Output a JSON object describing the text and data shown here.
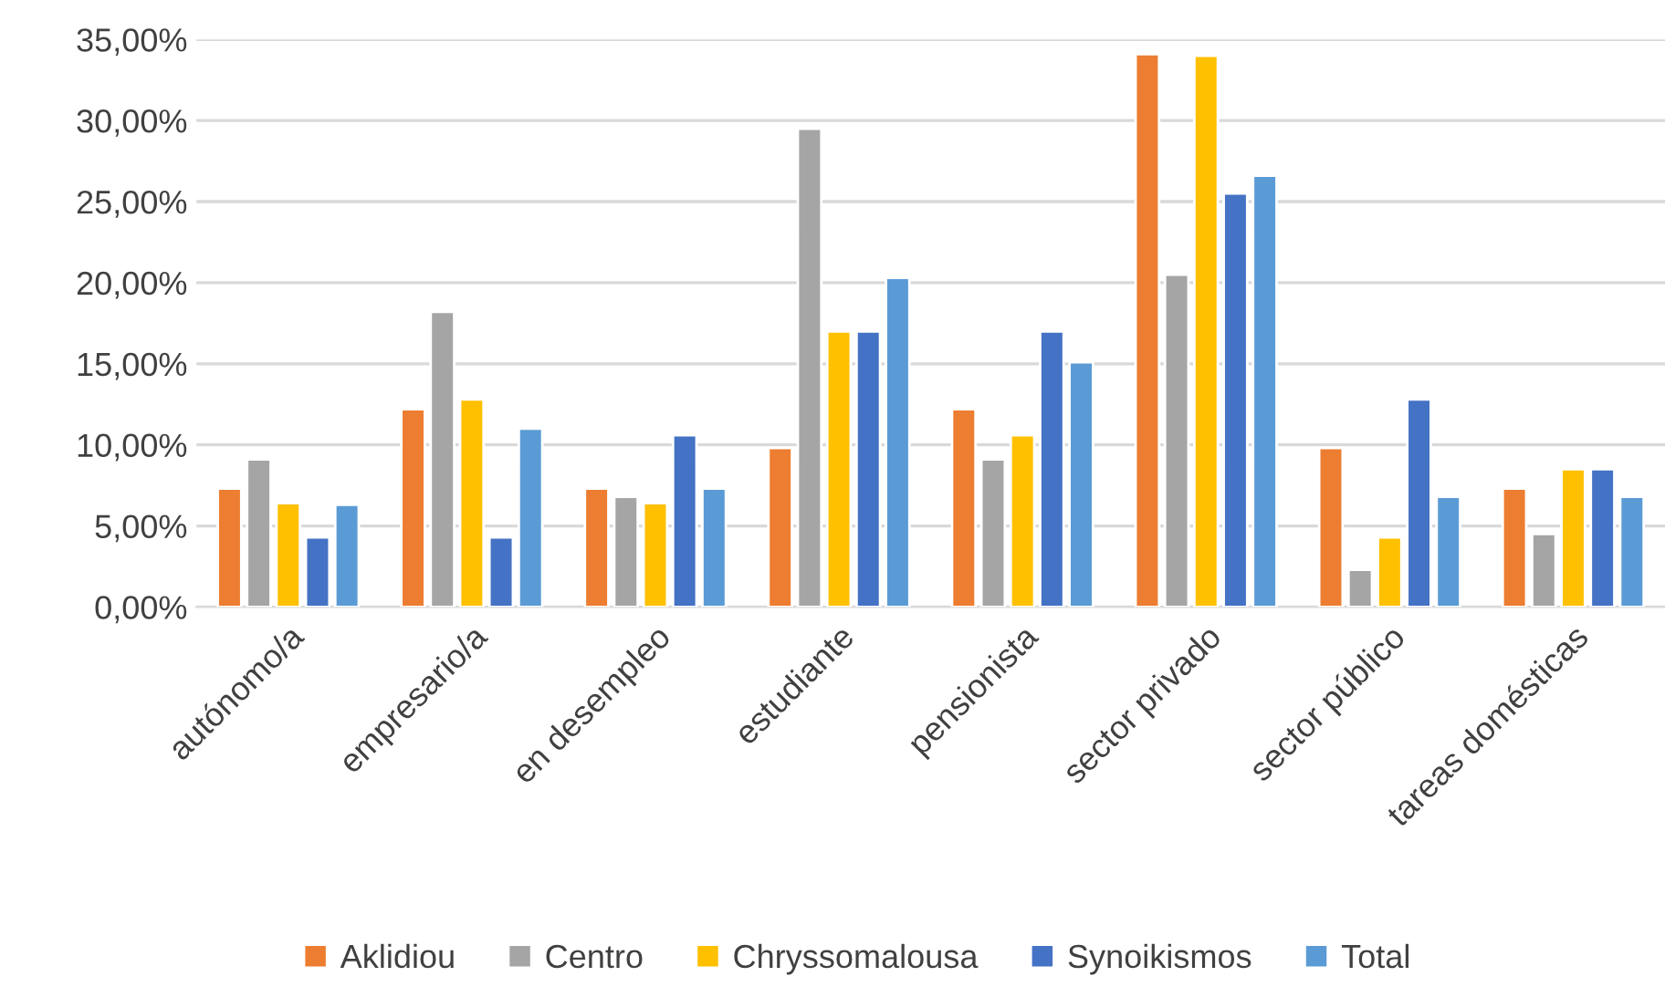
{
  "chart_data": {
    "type": "bar",
    "categories": [
      "autónomo/a",
      "empresario/a",
      "en desempleo",
      "estudiante",
      "pensionista",
      "sector privado",
      "sector público",
      "tareas domésticas"
    ],
    "series": [
      {
        "name": "Aklidiou",
        "color": "#ed7d31",
        "values": [
          7.3,
          12.2,
          7.3,
          9.8,
          12.2,
          34.1,
          9.8,
          7.3
        ]
      },
      {
        "name": "Centro",
        "color": "#a5a5a5",
        "values": [
          9.1,
          18.2,
          6.8,
          29.5,
          9.1,
          20.5,
          2.3,
          4.5
        ]
      },
      {
        "name": "Chryssomalousa",
        "color": "#ffc000",
        "values": [
          6.4,
          12.8,
          6.4,
          17.0,
          10.6,
          34.0,
          4.3,
          8.5
        ]
      },
      {
        "name": "Synoikismos",
        "color": "#4472c4",
        "values": [
          4.3,
          4.3,
          10.6,
          17.0,
          17.0,
          25.5,
          12.8,
          8.5
        ]
      },
      {
        "name": "Total",
        "color": "#5b9bd5",
        "values": [
          6.3,
          11.0,
          7.3,
          20.3,
          15.1,
          26.6,
          6.8,
          6.8
        ]
      }
    ],
    "ylim": [
      0,
      35
    ],
    "yticks": [
      {
        "value": 0,
        "label": "0,00%"
      },
      {
        "value": 5,
        "label": "5,00%"
      },
      {
        "value": 10,
        "label": "10,00%"
      },
      {
        "value": 15,
        "label": "15,00%"
      },
      {
        "value": 20,
        "label": "20,00%"
      },
      {
        "value": 25,
        "label": "25,00%"
      },
      {
        "value": 30,
        "label": "30,00%"
      },
      {
        "value": 35,
        "label": "35,00%"
      }
    ],
    "grid": "y",
    "legend": "bottom"
  }
}
